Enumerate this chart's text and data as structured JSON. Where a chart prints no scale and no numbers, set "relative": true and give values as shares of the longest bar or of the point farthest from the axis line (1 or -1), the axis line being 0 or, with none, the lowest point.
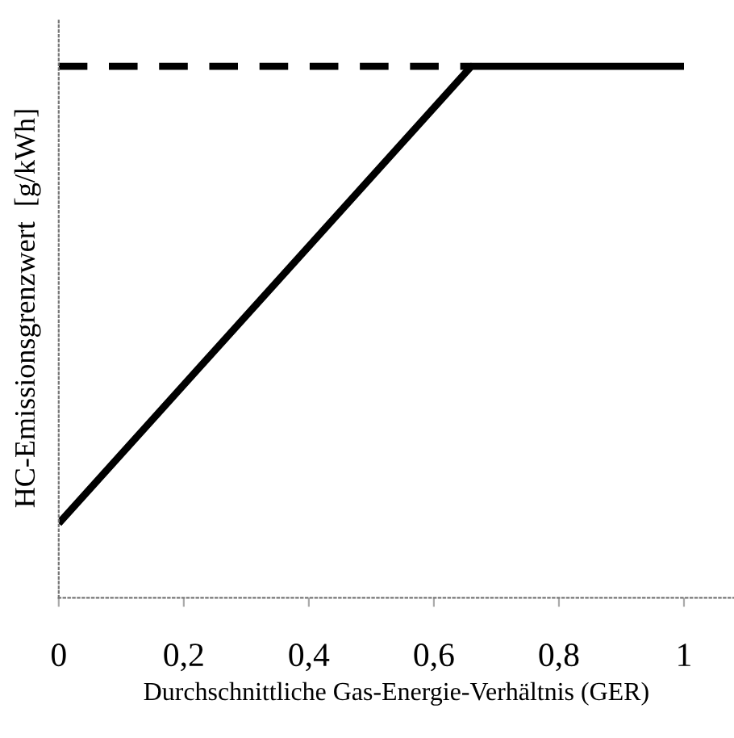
{
  "chart_data": {
    "type": "line",
    "xlabel": "Durchschnittliche Gas-Energie-Verhältnis (GER)",
    "ylabel": "HC-Emissionsgrenzwert  [g/kWh]",
    "relative": true,
    "xlim": [
      0,
      1.08
    ],
    "xticks": [
      0,
      {
        "value": 0.2,
        "label": "0,2"
      },
      {
        "value": 0.4,
        "label": "0,4"
      },
      {
        "value": 0.6,
        "label": "0,6"
      },
      {
        "value": 0.8,
        "label": "0,8"
      },
      1
    ],
    "series": [
      {
        "x": [
          0,
          0.66,
          1
        ],
        "values": [
          0.14,
          1,
          1
        ],
        "color": "#000000",
        "line_style": "solid"
      },
      {
        "x": [
          0,
          0.66
        ],
        "values": [
          1,
          1
        ],
        "color": "#000000",
        "line_style": "dashed"
      }
    ],
    "grid": false,
    "legend": false
  }
}
